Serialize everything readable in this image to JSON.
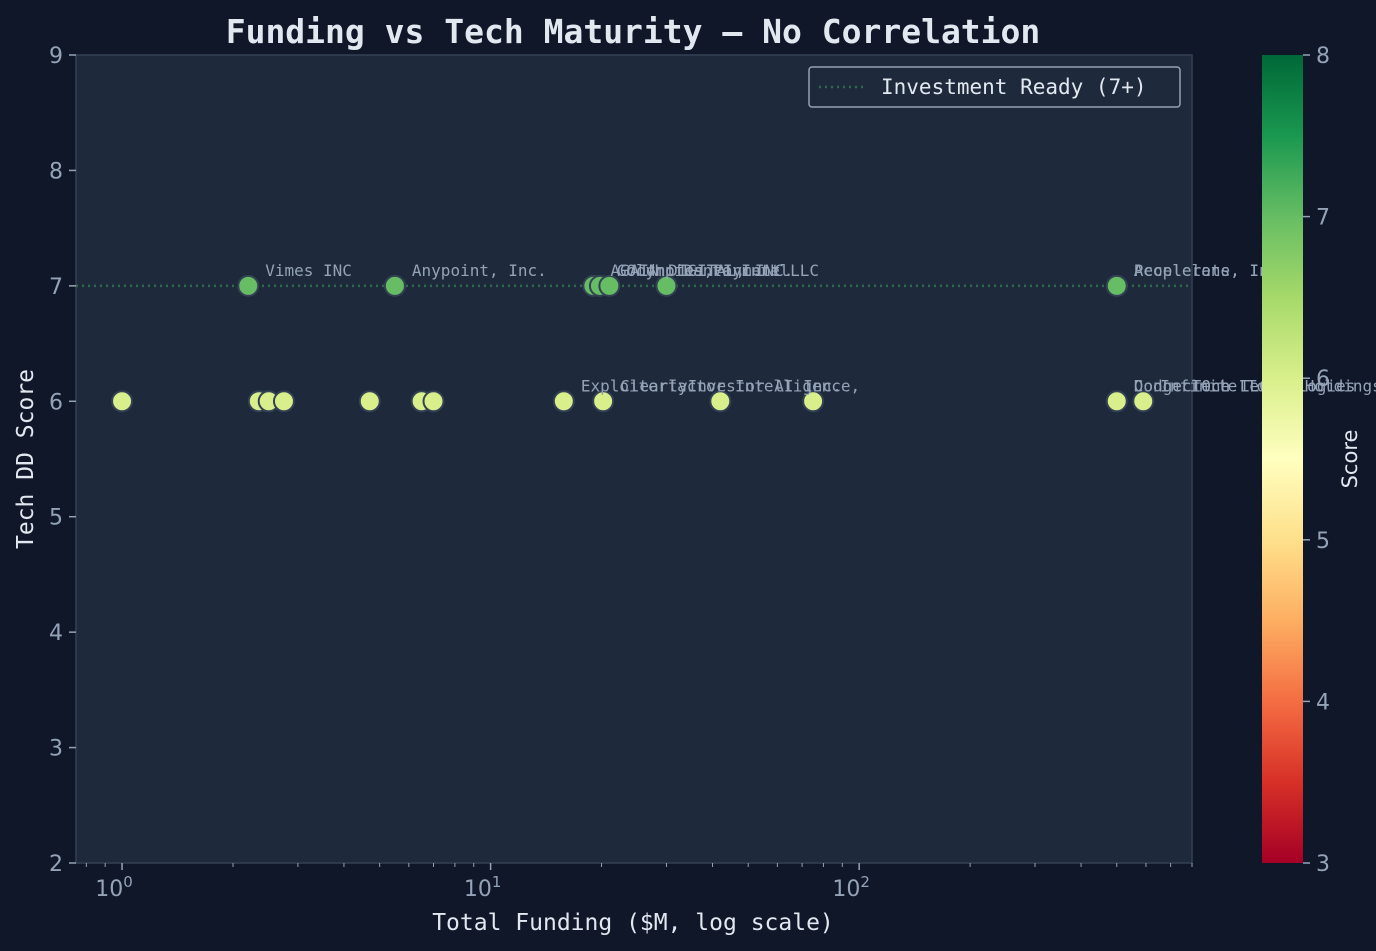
{
  "chart_data": {
    "type": "scatter",
    "title": "Funding vs Tech Maturity — No Correlation",
    "xlabel": "Total Funding ($M, log scale)",
    "ylabel": "Tech DD Score",
    "xscale": "log",
    "xlim": [
      0.75,
      800
    ],
    "ylim": [
      2,
      9
    ],
    "yticks": [
      2,
      3,
      4,
      5,
      6,
      7,
      8,
      9
    ],
    "xticks": [
      {
        "base": "10",
        "exp": "0",
        "value": 1
      },
      {
        "base": "10",
        "exp": "1",
        "value": 10
      },
      {
        "base": "10",
        "exp": "2",
        "value": 100
      }
    ],
    "grid": false,
    "legend": {
      "position": "top-right",
      "entries": [
        "Investment Ready (7+)"
      ]
    },
    "reference_line": {
      "y": 7,
      "label": "Investment Ready (7+)",
      "style": "dotted",
      "color": "#2e6b4a"
    },
    "colorbar": {
      "label": "Score",
      "min": 3,
      "max": 8,
      "ticks": [
        "3",
        "4",
        "5",
        "6",
        "7",
        "8"
      ],
      "colormap": "RdYlGn"
    },
    "points": [
      {
        "x": 1.0,
        "y": 6,
        "label": ""
      },
      {
        "x": 2.2,
        "y": 7,
        "label": "Vimes INC"
      },
      {
        "x": 2.35,
        "y": 6,
        "label": ""
      },
      {
        "x": 2.5,
        "y": 6,
        "label": ""
      },
      {
        "x": 2.75,
        "y": 6,
        "label": ""
      },
      {
        "x": 4.7,
        "y": 6,
        "label": ""
      },
      {
        "x": 5.5,
        "y": 7,
        "label": "Anypoint, Inc."
      },
      {
        "x": 6.5,
        "y": 6,
        "label": ""
      },
      {
        "x": 7.0,
        "y": 6,
        "label": ""
      },
      {
        "x": 15.8,
        "y": 6,
        "label": "Exploiterfactor Intelligence,"
      },
      {
        "x": 19.0,
        "y": 7,
        "label": "AGAIN DIGITAL, INC."
      },
      {
        "x": 19.8,
        "y": 7,
        "label": "Goodnotes, Inc."
      },
      {
        "x": 20.2,
        "y": 6,
        "label": "ClearlyInvestor AI Inc."
      },
      {
        "x": 21.0,
        "y": 7,
        "label": "Olympics Payment LLC"
      },
      {
        "x": 30.0,
        "y": 7,
        "label": "Dante Intel"
      },
      {
        "x": 42.0,
        "y": 6,
        "label": ""
      },
      {
        "x": 75.0,
        "y": 6,
        "label": ""
      },
      {
        "x": 500.0,
        "y": 7,
        "label": "Accelerate, Inc."
      },
      {
        "x": 500.0,
        "y": 7,
        "label": "Peoplelens, Inc."
      },
      {
        "x": 500.0,
        "y": 6,
        "label": "ConnectOne Technologies"
      },
      {
        "x": 500.0,
        "y": 6,
        "label": "Dodge Tech LLC"
      },
      {
        "x": 590.0,
        "y": 6,
        "label": "Infinite Tower Holdings"
      }
    ],
    "colors": {
      "score6": "#d9ef8b",
      "score7": "#66bd63",
      "background": "#0f1729",
      "plot_bg": "#1e293b"
    }
  }
}
